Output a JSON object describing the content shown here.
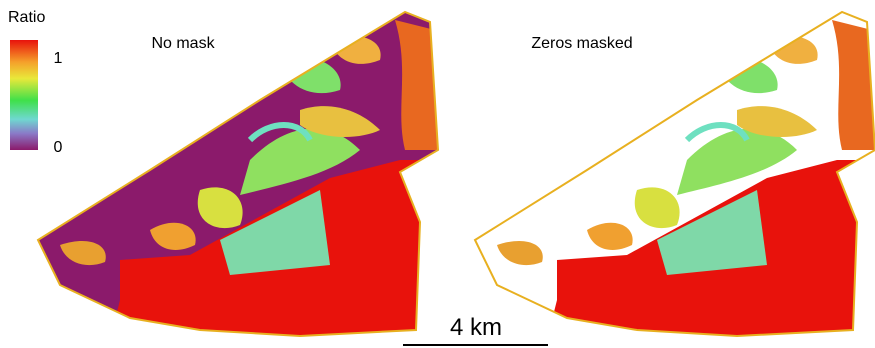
{
  "legend": {
    "title": "Ratio",
    "max": 1,
    "min": 0
  },
  "panels": [
    {
      "label": "No mask"
    },
    {
      "label": "Zeros masked"
    }
  ],
  "scale_bar": {
    "label": "4 km"
  }
}
